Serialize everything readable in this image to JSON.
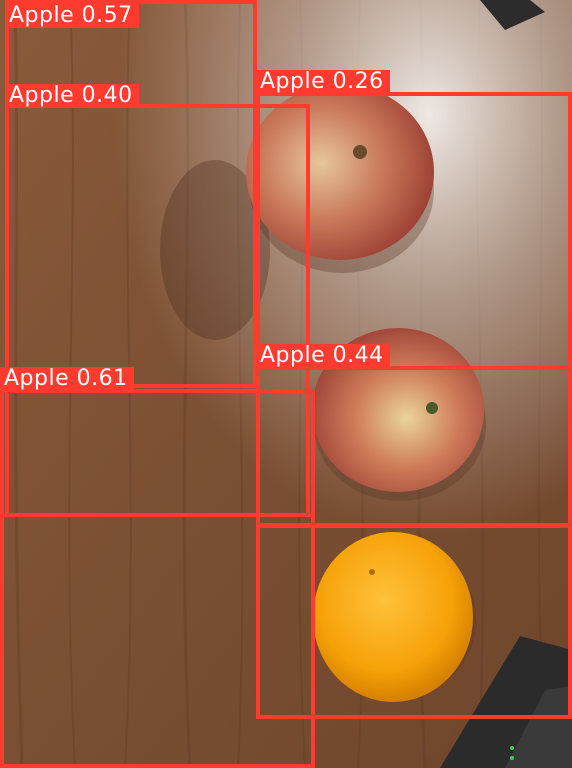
{
  "detections": [
    {
      "label": "Apple",
      "score": "0.57",
      "color": "#ff3b30"
    },
    {
      "label": "Apple",
      "score": "0.40",
      "color": "#ff3b30"
    },
    {
      "label": "Apple",
      "score": "0.26",
      "color": "#ff3b30"
    },
    {
      "label": "Apple",
      "score": "0.44",
      "color": "#ff3b30"
    },
    {
      "label": "Apple",
      "score": "0.61",
      "color": "#ff3b30"
    }
  ],
  "unlabeled_boxes": 2
}
